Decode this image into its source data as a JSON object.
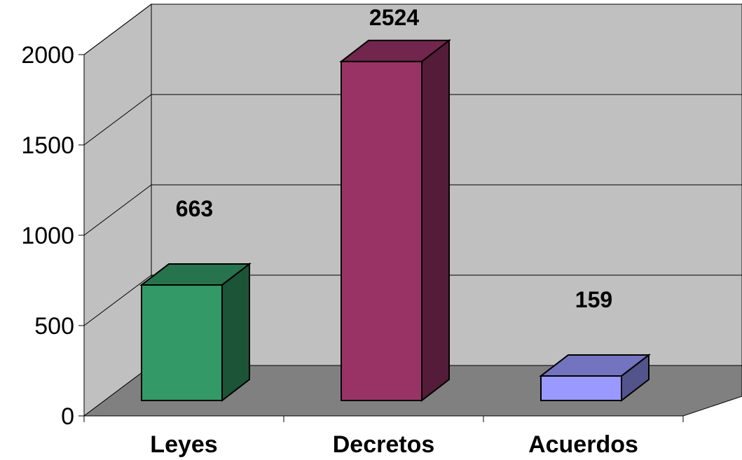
{
  "chart_data": {
    "type": "bar",
    "categories": [
      "Leyes",
      "Decretos",
      "Acuerdos"
    ],
    "values": [
      663,
      2524,
      159
    ],
    "data_labels": [
      "663",
      "2524",
      "159"
    ],
    "ylim": [
      0,
      2000
    ],
    "yticks": [
      0,
      500,
      1000,
      1500,
      2000
    ],
    "ytick_labels": [
      "0",
      "500",
      "1000",
      "1500",
      "2000"
    ],
    "grid": true,
    "legend": "none",
    "title": "",
    "xlabel": "",
    "ylabel": "",
    "style": "3d-column",
    "colors": {
      "bars": [
        "#339966",
        "#993366",
        "#9999ff"
      ],
      "back_wall": "#c0c0c0",
      "side_wall": "#c0c0c0",
      "floor": "#808080"
    }
  }
}
